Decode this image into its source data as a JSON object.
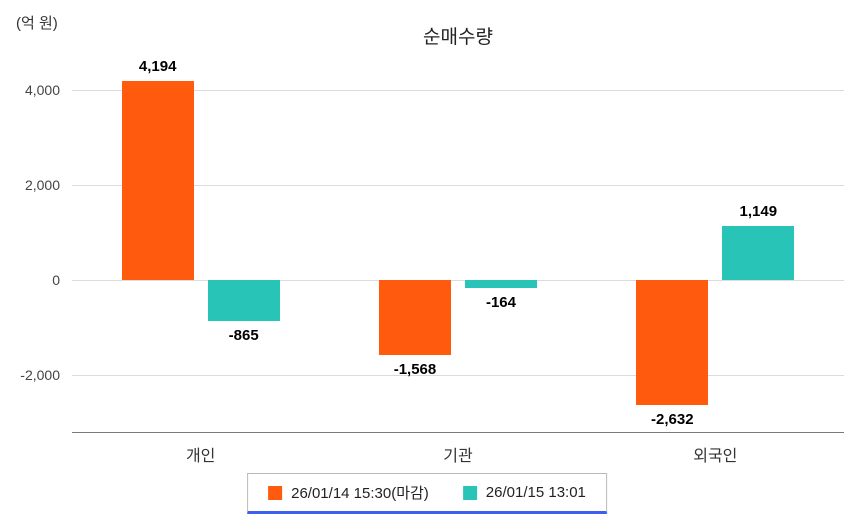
{
  "title": "순매수량",
  "unit_label": "(억 원)",
  "chart_data": {
    "type": "bar",
    "categories": [
      "개인",
      "기관",
      "외국인"
    ],
    "series": [
      {
        "name": "26/01/14 15:30(마감)",
        "color": "#ff5a0e",
        "values": [
          4194,
          -1568,
          -2632
        ],
        "labels": [
          "4,194",
          "-1,568",
          "-2,632"
        ]
      },
      {
        "name": "26/01/15 13:01",
        "color": "#29c4b8",
        "values": [
          -865,
          -164,
          1149
        ],
        "labels": [
          "-865",
          "-164",
          "1,149"
        ]
      }
    ],
    "yticks": [
      4000,
      2000,
      0,
      -2000
    ],
    "ytick_labels": [
      "4,000",
      "2,000",
      "0",
      "-2,000"
    ],
    "ylim": [
      -3200,
      4600
    ],
    "grid": true,
    "legend_position": "bottom",
    "legend_accent_color": "#3d5ef0"
  }
}
